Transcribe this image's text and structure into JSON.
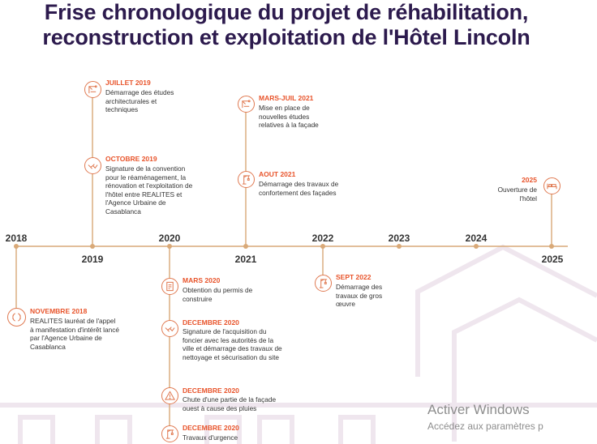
{
  "title": {
    "line1": "Frise chronologique du projet de réhabilitation,",
    "line2": "reconstruction et exploitation de l'Hôtel Lincoln"
  },
  "colors": {
    "accent": "#e8542b",
    "line": "#d9a978",
    "title": "#2c1a4d"
  },
  "years": [
    "2018",
    "2019",
    "2020",
    "2021",
    "2022",
    "2023",
    "2024",
    "2025"
  ],
  "events": [
    {
      "date": "JUILLET 2019",
      "text": "Démarrage  des études architecturales et techniques",
      "icon": "drafting-icon"
    },
    {
      "date": "OCTOBRE 2019",
      "text": "Signature de la convention pour le réaménagement, la rénovation et l'exploitation de l'hôtel entre REALITES et l'Agence Urbaine de Casablanca",
      "icon": "handshake-icon"
    },
    {
      "date": "MARS-JUIL 2021",
      "text": "Mise en place de nouvelles études relatives à la façade",
      "icon": "drafting-icon"
    },
    {
      "date": "AOUT 2021",
      "text": "Démarrage des travaux de confortement des façades",
      "icon": "crane-icon"
    },
    {
      "date": "2025",
      "text": "Ouverture de l'hôtel",
      "icon": "bed-icon"
    },
    {
      "date": "NOVEMBRE 2018",
      "text": "REALITES lauréat  de l'appel à manifestation d'intérêt lancé par  l'Agence Urbaine de Casablanca",
      "icon": "laurel-icon"
    },
    {
      "date": "MARS 2020",
      "text": "Obtention du permis de construire",
      "icon": "permit-icon"
    },
    {
      "date": "DECEMBRE 2020",
      "text": "Signature de l'acquisition du foncier avec les autorités de la ville et démarrage des travaux de nettoyage et sécurisation du site",
      "icon": "handshake-icon"
    },
    {
      "date": "DECEMBRE 2020",
      "text": "Chute d'une partie de la façade ouest à cause des pluies",
      "icon": "warning-icon"
    },
    {
      "date": "DECEMBRE 2020",
      "text": "Travaux d'urgence",
      "icon": "crane-icon"
    },
    {
      "date": "SEPT 2022",
      "text": "Démarrage des travaux de gros œuvre",
      "icon": "crane-icon"
    }
  ],
  "watermark": {
    "title": "Activer Windows",
    "subtitle": "Accédez aux paramètres p"
  }
}
